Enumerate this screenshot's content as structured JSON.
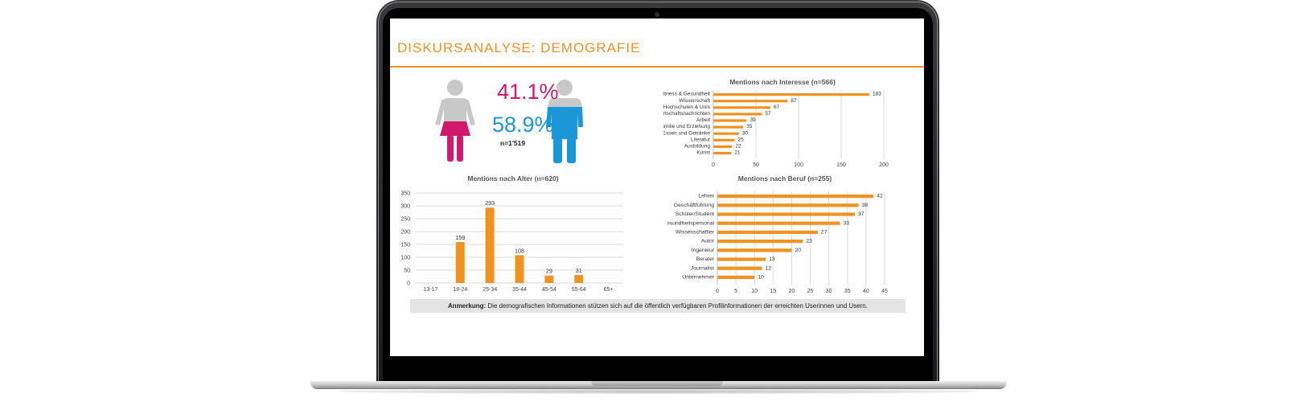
{
  "slide": {
    "title": "DISKURSANALYSE: DEMOGRAFIE",
    "accent": "#f0921f",
    "female_color": "#d1186f",
    "male_color": "#1b96d6",
    "icon_gray": "#c8c8c8"
  },
  "gender": {
    "female_pct": "41.1%",
    "male_pct": "58.9%",
    "n_label": "n=1'519",
    "female_icon": "female-person-icon",
    "male_icon": "male-person-icon"
  },
  "note": {
    "label": "Anmerkung:",
    "text": "Die demografischen Informationen stützen sich auf die öffentlich verfügbaren Profilinformationen der erreichten Userinnen und Usern."
  },
  "chart_data": [
    {
      "type": "bar",
      "orientation": "horizontal",
      "title": "Mentions nach Interesse (n=566)",
      "categories": [
        "Fitness & Gesundheit",
        "Wissenschaft",
        "Hochschulen & Unis",
        "Wirtschaftsnachrichten",
        "Arbeit",
        "Familie und Erziehung",
        "Essen und Getränke",
        "Literatur",
        "Ausbildung",
        "Kunst"
      ],
      "values": [
        183,
        87,
        67,
        57,
        39,
        35,
        30,
        25,
        22,
        21
      ],
      "xlim": [
        0,
        200
      ],
      "ticks": [
        0,
        50,
        100,
        150,
        200
      ],
      "grid": "vertical",
      "color": "#f0921f"
    },
    {
      "type": "bar",
      "orientation": "vertical",
      "title": "Mentions nach Alter (n=620)",
      "categories": [
        "13-17",
        "18-24",
        "25-34",
        "35-44",
        "45-54",
        "55-64",
        "65+"
      ],
      "values": [
        0,
        159,
        293,
        108,
        29,
        31,
        0
      ],
      "labels": [
        "",
        "159",
        "293",
        "108",
        "29",
        "31",
        ""
      ],
      "ylim": [
        0,
        350
      ],
      "ticks": [
        0,
        50,
        100,
        150,
        200,
        250,
        300,
        350
      ],
      "grid": "horizontal",
      "color": "#f0921f"
    },
    {
      "type": "bar",
      "orientation": "horizontal",
      "title": "Mentions nach Beruf (n=255)",
      "categories": [
        "Lehrer",
        "Geschäftführung",
        "Schüler/Student",
        "Gesundheitspersonal",
        "Wissenschaftler",
        "Autor",
        "Ingenieur",
        "Berater",
        "Journalist",
        "Unternehmer"
      ],
      "values": [
        42,
        38,
        37,
        33,
        27,
        23,
        20,
        13,
        12,
        10
      ],
      "xlim": [
        0,
        45
      ],
      "ticks": [
        0,
        5,
        10,
        15,
        20,
        25,
        30,
        35,
        40,
        45
      ],
      "grid": "vertical",
      "color": "#f0921f"
    }
  ]
}
